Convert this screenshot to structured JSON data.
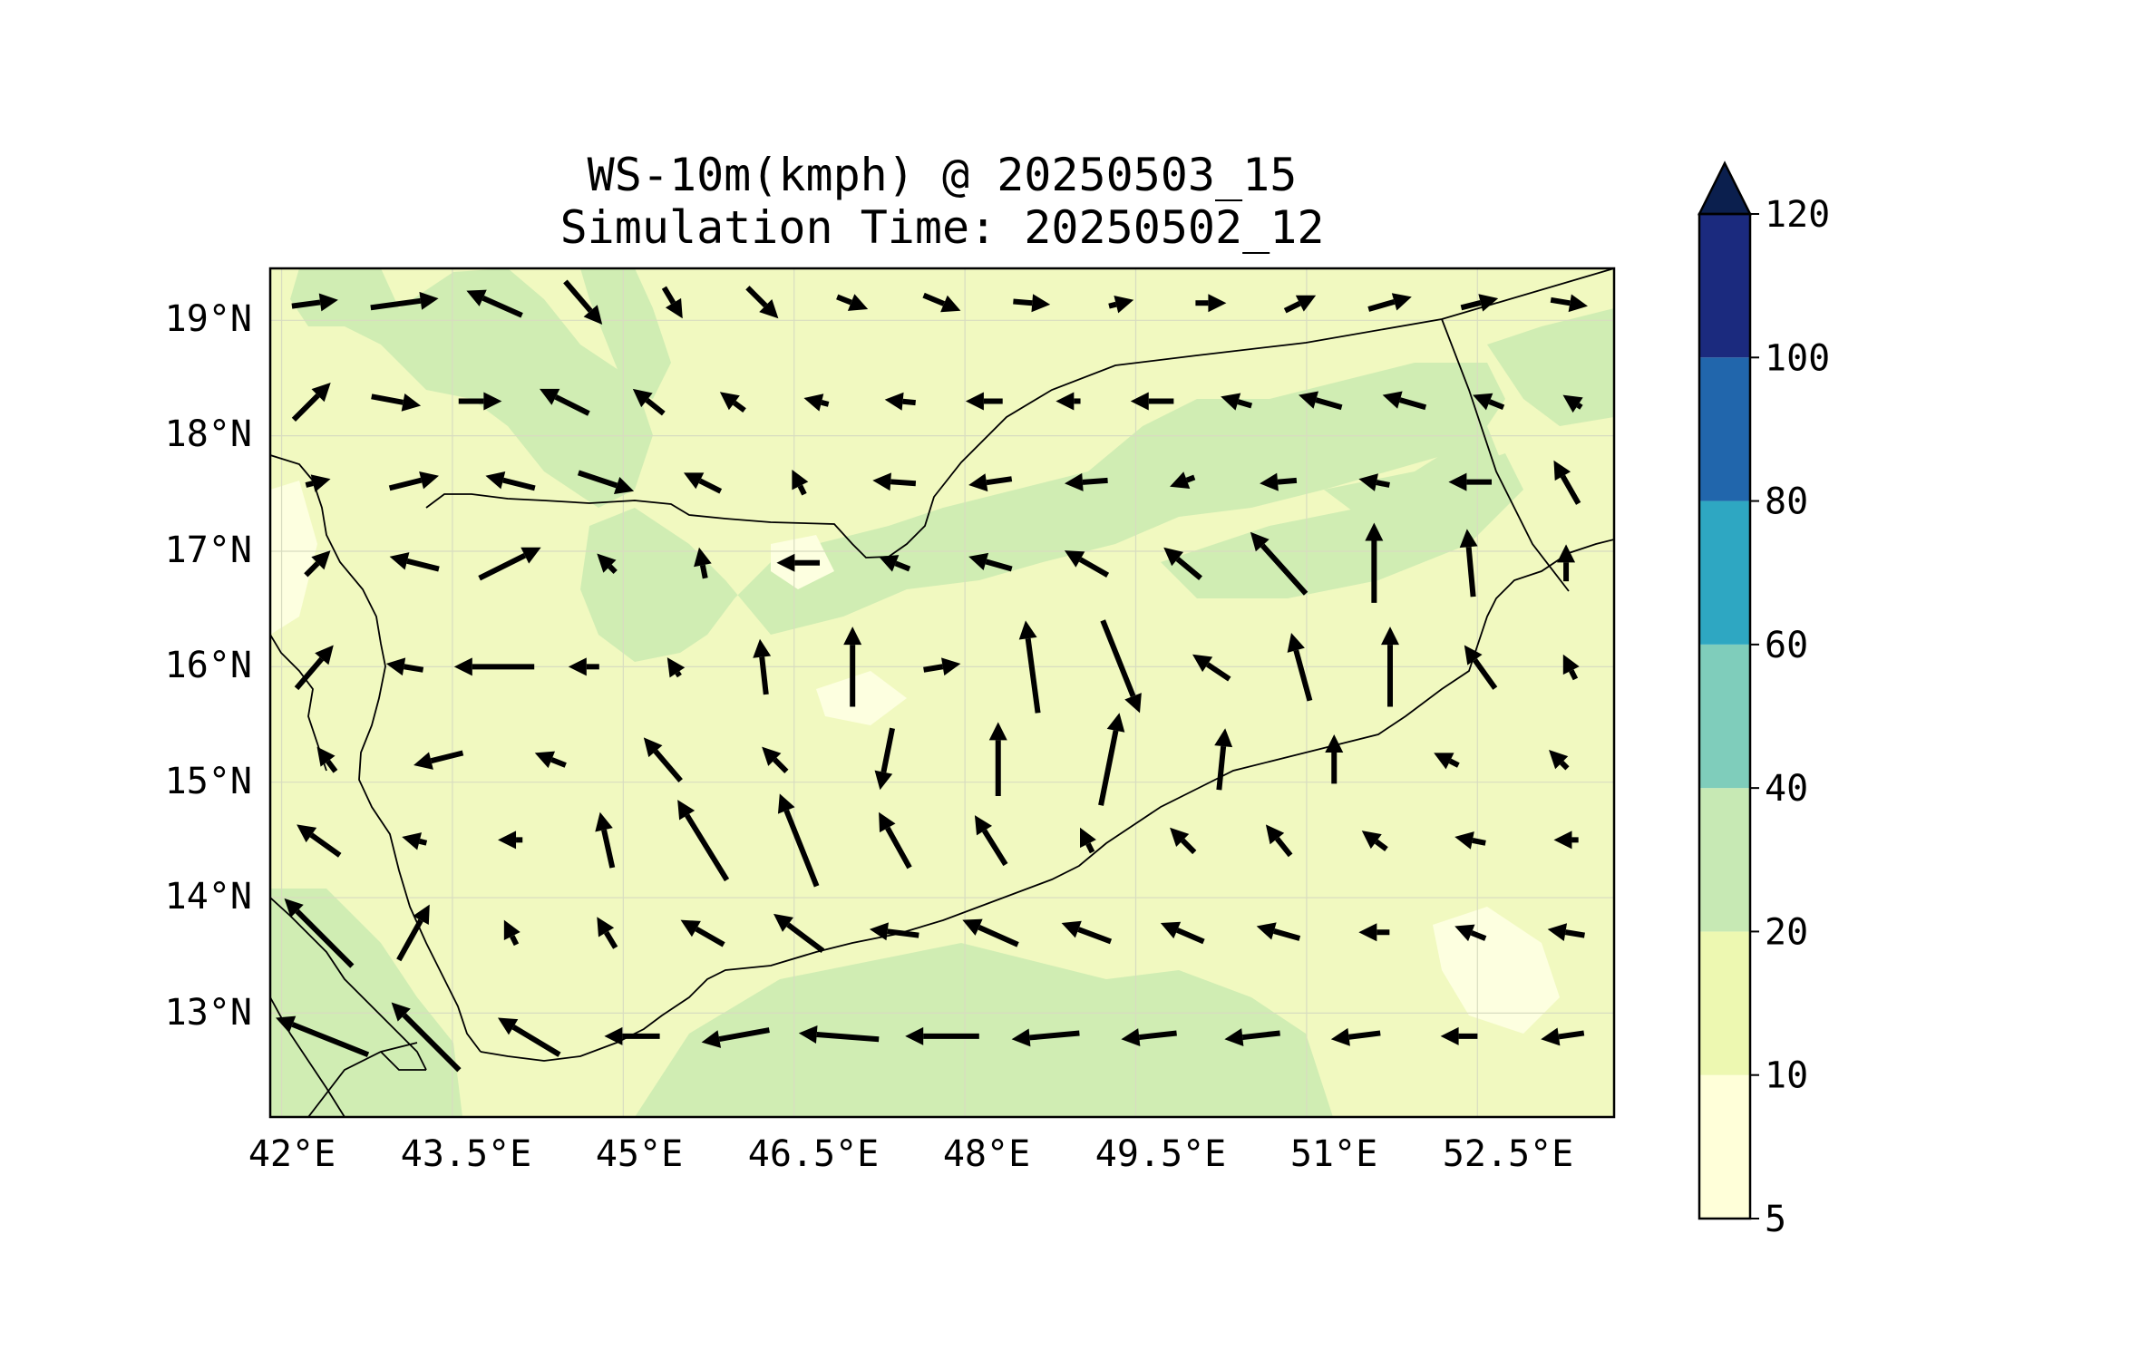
{
  "title": {
    "line1": "WS-10m(kmph) @ 20250503_15",
    "line2": "Simulation Time: 20250502_12"
  },
  "map": {
    "lon_range": [
      41.9,
      53.7
    ],
    "lat_range": [
      12.1,
      19.45
    ],
    "background_color": "#f1f9c0",
    "lon_ticks": [
      {
        "value": 42.0,
        "label": "42°E"
      },
      {
        "value": 43.5,
        "label": "43.5°E"
      },
      {
        "value": 45.0,
        "label": "45°E"
      },
      {
        "value": 46.5,
        "label": "46.5°E"
      },
      {
        "value": 48.0,
        "label": "48°E"
      },
      {
        "value": 49.5,
        "label": "49.5°E"
      },
      {
        "value": 51.0,
        "label": "51°E"
      },
      {
        "value": 52.5,
        "label": "52.5°E"
      }
    ],
    "lat_ticks": [
      {
        "value": 19.0,
        "label": "19°N"
      },
      {
        "value": 18.0,
        "label": "18°N"
      },
      {
        "value": 17.0,
        "label": "17°N"
      },
      {
        "value": 16.0,
        "label": "16°N"
      },
      {
        "value": 15.0,
        "label": "15°N"
      },
      {
        "value": 14.0,
        "label": "14°N"
      },
      {
        "value": 13.0,
        "label": "13°N"
      }
    ],
    "wind_units": "kmph",
    "wind_speed_bands": [
      {
        "range": "10-20",
        "color": "#f1f9c0"
      },
      {
        "range": "20-40",
        "color": "#d0edb3"
      },
      {
        "range": "5-10",
        "color": "#fdffe0"
      }
    ]
  },
  "colorbar": {
    "extend": "max",
    "levels": [
      {
        "value": 5,
        "label": "5"
      },
      {
        "value": 10,
        "label": "10"
      },
      {
        "value": 20,
        "label": "20"
      },
      {
        "value": 40,
        "label": "40"
      },
      {
        "value": 60,
        "label": "60"
      },
      {
        "value": 80,
        "label": "80"
      },
      {
        "value": 100,
        "label": "100"
      },
      {
        "value": 120,
        "label": "120"
      }
    ],
    "colors": [
      "#ffffd9",
      "#edf8b1",
      "#c7e9b4",
      "#7fcdbb",
      "#2ea7c2",
      "#2166ac",
      "#1b2a7e"
    ],
    "extend_color": "#0b1f4e"
  },
  "chart_data": {
    "type": "heatmap",
    "title": "WS-10m(kmph) @ 20250503_15 / Simulation Time: 20250502_12",
    "xlabel": "",
    "ylabel": "",
    "xlim": [
      41.9,
      53.7
    ],
    "ylim": [
      12.1,
      19.45
    ],
    "grid": true,
    "wind_vectors_u_v_kmph": [
      {
        "lat": 19.15,
        "row": [
          [
            15,
            2
          ],
          [
            22,
            3
          ],
          [
            -18,
            8
          ],
          [
            12,
            -14
          ],
          [
            6,
            -10
          ],
          [
            10,
            -10
          ],
          [
            10,
            -4
          ],
          [
            12,
            -5
          ],
          [
            12,
            -1
          ],
          [
            8,
            2
          ],
          [
            10,
            0
          ],
          [
            10,
            5
          ],
          [
            14,
            4
          ],
          [
            12,
            3
          ],
          [
            12,
            -2
          ]
        ]
      },
      {
        "lat": 18.3,
        "row": [
          [
            12,
            12
          ],
          [
            16,
            -3
          ],
          [
            14,
            0
          ],
          [
            -16,
            8
          ],
          [
            -10,
            8
          ],
          [
            -8,
            6
          ],
          [
            -8,
            2
          ],
          [
            -10,
            1
          ],
          [
            -12,
            0
          ],
          [
            -8,
            0
          ],
          [
            -14,
            0
          ],
          [
            -10,
            3
          ],
          [
            -14,
            4
          ],
          [
            -14,
            4
          ],
          [
            -10,
            4
          ],
          [
            -6,
            4
          ]
        ]
      },
      {
        "lat": 17.6,
        "row": [
          [
            8,
            2
          ],
          [
            16,
            4
          ],
          [
            -16,
            4
          ],
          [
            18,
            -6
          ],
          [
            -12,
            6
          ],
          [
            -4,
            8
          ],
          [
            -14,
            1
          ],
          [
            -14,
            -2
          ],
          [
            -14,
            -1
          ],
          [
            -8,
            -3
          ],
          [
            -12,
            -1
          ],
          [
            -10,
            2
          ],
          [
            -14,
            0
          ],
          [
            -8,
            14
          ]
        ]
      },
      {
        "lat": 16.9,
        "row": [
          [
            8,
            8
          ],
          [
            -16,
            4
          ],
          [
            20,
            10
          ],
          [
            -6,
            6
          ],
          [
            -2,
            10
          ],
          [
            -14,
            0
          ],
          [
            -10,
            4
          ],
          [
            -14,
            4
          ],
          [
            -14,
            8
          ],
          [
            -12,
            10
          ],
          [
            -18,
            20
          ],
          [
            0,
            26
          ],
          [
            -2,
            22
          ],
          [
            0,
            12
          ]
        ]
      },
      {
        "lat": 16.0,
        "row": [
          [
            12,
            14
          ],
          [
            -12,
            2
          ],
          [
            -26,
            0
          ],
          [
            -10,
            0
          ],
          [
            -4,
            6
          ],
          [
            -2,
            18
          ],
          [
            0,
            26
          ],
          [
            12,
            2
          ],
          [
            -4,
            30
          ],
          [
            12,
            -30
          ],
          [
            -12,
            8
          ],
          [
            -6,
            22
          ],
          [
            0,
            26
          ],
          [
            -10,
            14
          ],
          [
            -4,
            8
          ]
        ]
      },
      {
        "lat": 15.2,
        "row": [
          [
            -6,
            8
          ],
          [
            -16,
            -4
          ],
          [
            -10,
            4
          ],
          [
            -12,
            14
          ],
          [
            -8,
            8
          ],
          [
            -4,
            -20
          ],
          [
            0,
            24
          ],
          [
            6,
            30
          ],
          [
            2,
            20
          ],
          [
            0,
            16
          ],
          [
            -8,
            4
          ],
          [
            -6,
            6
          ]
        ]
      },
      {
        "lat": 14.5,
        "row": [
          [
            -14,
            10
          ],
          [
            -8,
            2
          ],
          [
            -8,
            0
          ],
          [
            -4,
            18
          ],
          [
            -16,
            26
          ],
          [
            -12,
            30
          ],
          [
            -10,
            18
          ],
          [
            -10,
            16
          ],
          [
            -4,
            8
          ],
          [
            -8,
            8
          ],
          [
            -8,
            10
          ],
          [
            -8,
            6
          ],
          [
            -10,
            2
          ],
          [
            -8,
            0
          ]
        ]
      },
      {
        "lat": 13.7,
        "row": [
          [
            -22,
            22
          ],
          [
            10,
            18
          ],
          [
            -4,
            8
          ],
          [
            -6,
            10
          ],
          [
            -14,
            8
          ],
          [
            -16,
            12
          ],
          [
            -16,
            2
          ],
          [
            -18,
            8
          ],
          [
            -16,
            6
          ],
          [
            -14,
            6
          ],
          [
            -14,
            4
          ],
          [
            -10,
            0
          ],
          [
            -10,
            4
          ],
          [
            -12,
            2
          ]
        ]
      },
      {
        "lat": 12.8,
        "row": [
          [
            -30,
            12
          ],
          [
            -22,
            22
          ],
          [
            -20,
            12
          ],
          [
            -18,
            0
          ],
          [
            -22,
            -4
          ],
          [
            -26,
            2
          ],
          [
            -24,
            0
          ],
          [
            -22,
            -2
          ],
          [
            -18,
            -2
          ],
          [
            -18,
            -2
          ],
          [
            -16,
            -2
          ],
          [
            -12,
            0
          ],
          [
            -14,
            -2
          ]
        ]
      }
    ]
  }
}
